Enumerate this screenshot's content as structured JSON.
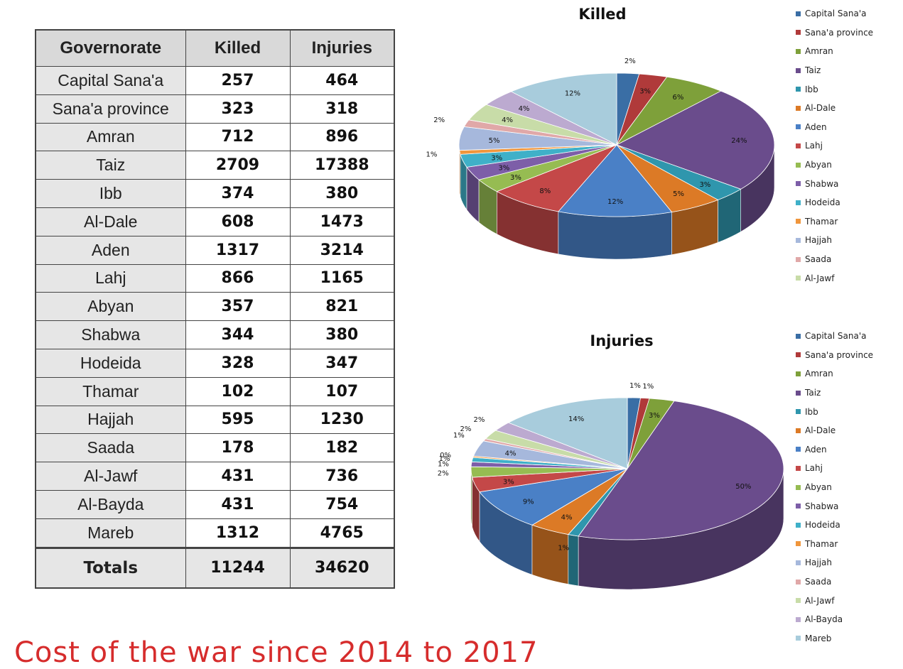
{
  "table": {
    "headers": [
      "Governorate",
      "Killed",
      "Injuries"
    ],
    "rows": [
      {
        "governorate": "Capital Sana'a",
        "killed": "257",
        "injuries": "464"
      },
      {
        "governorate": "Sana'a province",
        "killed": "323",
        "injuries": "318"
      },
      {
        "governorate": "Amran",
        "killed": "712",
        "injuries": "896"
      },
      {
        "governorate": "Taiz",
        "killed": "2709",
        "injuries": "17388"
      },
      {
        "governorate": "Ibb",
        "killed": "374",
        "injuries": "380"
      },
      {
        "governorate": "Al-Dale",
        "killed": "608",
        "injuries": "1473"
      },
      {
        "governorate": "Aden",
        "killed": "1317",
        "injuries": "3214"
      },
      {
        "governorate": "Lahj",
        "killed": "866",
        "injuries": "1165"
      },
      {
        "governorate": "Abyan",
        "killed": "357",
        "injuries": "821"
      },
      {
        "governorate": "Shabwa",
        "killed": "344",
        "injuries": "380"
      },
      {
        "governorate": "Hodeida",
        "killed": "328",
        "injuries": "347"
      },
      {
        "governorate": "Thamar",
        "killed": "102",
        "injuries": "107"
      },
      {
        "governorate": "Hajjah",
        "killed": "595",
        "injuries": "1230"
      },
      {
        "governorate": "Saada",
        "killed": "178",
        "injuries": "182"
      },
      {
        "governorate": "Al-Jawf",
        "killed": "431",
        "injuries": "736"
      },
      {
        "governorate": "Al-Bayda",
        "killed": "431",
        "injuries": "754"
      },
      {
        "governorate": "Mareb",
        "killed": "1312",
        "injuries": "4765"
      }
    ],
    "totals": {
      "label": "Totals",
      "killed": "11244",
      "injuries": "34620"
    }
  },
  "chart_data": [
    {
      "type": "pie",
      "title": "Killed",
      "legend_placement": "right",
      "categories": [
        "Capital Sana'a",
        "Sana'a province",
        "Amran",
        "Taiz",
        "Ibb",
        "Al-Dale",
        "Aden",
        "Lahj",
        "Abyan",
        "Shabwa",
        "Hodeida",
        "Thamar",
        "Hajjah",
        "Saada",
        "Al-Jawf",
        "Al-Bayda",
        "Mareb"
      ],
      "legend_entries": [
        "Capital Sana'a",
        "Sana'a province",
        "Amran",
        "Taiz",
        "Ibb",
        "Al-Dale",
        "Aden",
        "Lahj",
        "Abyan",
        "Shabwa",
        "Hodeida",
        "Thamar",
        "Hajjah",
        "Saada",
        "Al-Jawf"
      ],
      "values": [
        257,
        323,
        712,
        2709,
        374,
        608,
        1317,
        866,
        357,
        344,
        328,
        102,
        595,
        178,
        431,
        431,
        1312
      ],
      "data_labels": [
        "2%",
        "3%",
        "6%",
        "24%",
        "3%",
        "5%",
        "12%",
        "8%",
        "3%",
        "3%",
        "3%",
        "1%",
        "5%",
        "2%",
        "4%",
        "4%",
        "12%"
      ]
    },
    {
      "type": "pie",
      "title": "Injuries",
      "legend_placement": "right",
      "categories": [
        "Capital Sana'a",
        "Sana'a province",
        "Amran",
        "Taiz",
        "Ibb",
        "Al-Dale",
        "Aden",
        "Lahj",
        "Abyan",
        "Shabwa",
        "Hodeida",
        "Thamar",
        "Hajjah",
        "Saada",
        "Al-Jawf",
        "Al-Bayda",
        "Mareb"
      ],
      "legend_entries": [
        "Capital Sana'a",
        "Sana'a province",
        "Amran",
        "Taiz",
        "Ibb",
        "Al-Dale",
        "Aden",
        "Lahj",
        "Abyan",
        "Shabwa",
        "Hodeida",
        "Thamar",
        "Hajjah",
        "Saada",
        "Al-Jawf",
        "Al-Bayda",
        "Mareb"
      ],
      "values": [
        464,
        318,
        896,
        17388,
        380,
        1473,
        3214,
        1165,
        821,
        380,
        347,
        107,
        1230,
        182,
        736,
        754,
        4765
      ],
      "data_labels": [
        "1%",
        "1%",
        "3%",
        "50%",
        "1%",
        "4%",
        "9%",
        "3%",
        "2%",
        "1%",
        "1%",
        "0%",
        "4%",
        "1%",
        "2%",
        "2%",
        "14%"
      ]
    }
  ],
  "colors": [
    "#3a6ea5",
    "#b03a3a",
    "#7ea03a",
    "#6a4c8c",
    "#2f96ad",
    "#dc7a26",
    "#4a80c6",
    "#c44848",
    "#96bc52",
    "#7d5ea8",
    "#3fb0c8",
    "#f0963c",
    "#a6b8dc",
    "#e0a8a8",
    "#c8dca8",
    "#bcaad0",
    "#a8ccdc"
  ],
  "footer": {
    "title": "Cost of the war since 2014 to 2017"
  }
}
